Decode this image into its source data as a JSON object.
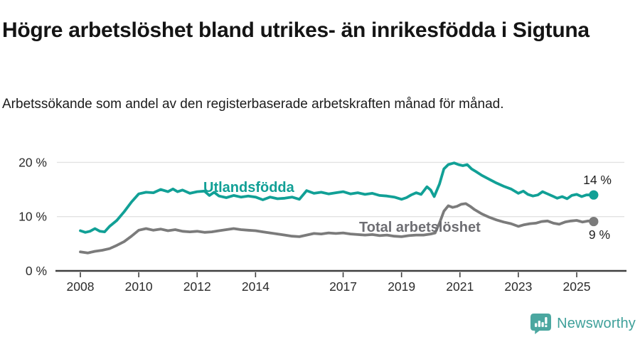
{
  "header": {
    "title": "Högre arbetslöshet bland utrikes- än inrikesfödda i Sigtuna",
    "subtitle": "Arbetssökande som andel av den registerbaserade arbetskraften månad för månad."
  },
  "footer": {
    "brand": "Newsworthy"
  },
  "colors": {
    "accent_teal": "#11a096",
    "series_gray": "#7b7b7b",
    "gray_label": "#6e6e73",
    "axis": "#3f3f3f",
    "grid": "#e2e2e2",
    "tick_text": "#2b2b2b",
    "value_text": "#1f1f1f",
    "brand_teal": "#4ba7a0"
  },
  "chart_data": {
    "type": "line",
    "title": "Högre arbetslöshet bland utrikes- än inrikesfödda i Sigtuna",
    "xlabel": "",
    "ylabel": "",
    "x_unit": "year (monthly data)",
    "y_unit": "%",
    "xlim": [
      2007.2,
      2026.6
    ],
    "ylim": [
      0,
      21
    ],
    "grid": "horizontal",
    "legend_position": "inline-labels",
    "y_ticks": [
      0,
      10,
      20
    ],
    "y_tick_labels": [
      "0 %",
      "10 %",
      "20 %"
    ],
    "x_ticks": [
      2008,
      2010,
      2012,
      2014,
      2017,
      2019,
      2021,
      2023,
      2025
    ],
    "x_tick_labels": [
      "2008",
      "2010",
      "2012",
      "2014",
      "2017",
      "2019",
      "2021",
      "2023",
      "2025"
    ],
    "series": [
      {
        "name": "Utlandsfödda",
        "color": "#11a096",
        "end_label": "14 %",
        "end_value": 14,
        "points": [
          [
            2008.0,
            7.4
          ],
          [
            2008.17,
            7.1
          ],
          [
            2008.33,
            7.3
          ],
          [
            2008.5,
            7.8
          ],
          [
            2008.67,
            7.3
          ],
          [
            2008.83,
            7.2
          ],
          [
            2009.0,
            8.2
          ],
          [
            2009.25,
            9.3
          ],
          [
            2009.5,
            10.9
          ],
          [
            2009.75,
            12.7
          ],
          [
            2010.0,
            14.2
          ],
          [
            2010.25,
            14.5
          ],
          [
            2010.5,
            14.4
          ],
          [
            2010.75,
            15.0
          ],
          [
            2011.0,
            14.6
          ],
          [
            2011.17,
            15.1
          ],
          [
            2011.33,
            14.6
          ],
          [
            2011.5,
            14.9
          ],
          [
            2011.75,
            14.3
          ],
          [
            2012.0,
            14.6
          ],
          [
            2012.25,
            14.7
          ],
          [
            2012.42,
            13.9
          ],
          [
            2012.58,
            14.5
          ],
          [
            2012.75,
            13.8
          ],
          [
            2013.0,
            13.5
          ],
          [
            2013.25,
            13.9
          ],
          [
            2013.5,
            13.6
          ],
          [
            2013.75,
            13.8
          ],
          [
            2014.0,
            13.6
          ],
          [
            2014.25,
            13.1
          ],
          [
            2014.5,
            13.6
          ],
          [
            2014.75,
            13.3
          ],
          [
            2015.0,
            13.4
          ],
          [
            2015.25,
            13.6
          ],
          [
            2015.5,
            13.2
          ],
          [
            2015.75,
            14.8
          ],
          [
            2016.0,
            14.3
          ],
          [
            2016.25,
            14.5
          ],
          [
            2016.5,
            14.2
          ],
          [
            2016.75,
            14.4
          ],
          [
            2017.0,
            14.6
          ],
          [
            2017.25,
            14.2
          ],
          [
            2017.5,
            14.4
          ],
          [
            2017.75,
            14.1
          ],
          [
            2018.0,
            14.3
          ],
          [
            2018.25,
            13.9
          ],
          [
            2018.5,
            13.8
          ],
          [
            2018.75,
            13.6
          ],
          [
            2019.0,
            13.2
          ],
          [
            2019.17,
            13.5
          ],
          [
            2019.33,
            14.0
          ],
          [
            2019.5,
            14.4
          ],
          [
            2019.67,
            14.1
          ],
          [
            2019.87,
            15.5
          ],
          [
            2020.0,
            14.9
          ],
          [
            2020.12,
            13.7
          ],
          [
            2020.3,
            16.0
          ],
          [
            2020.45,
            18.8
          ],
          [
            2020.6,
            19.6
          ],
          [
            2020.8,
            19.9
          ],
          [
            2020.95,
            19.6
          ],
          [
            2021.1,
            19.4
          ],
          [
            2021.25,
            19.6
          ],
          [
            2021.4,
            18.8
          ],
          [
            2021.55,
            18.3
          ],
          [
            2021.75,
            17.6
          ],
          [
            2022.0,
            16.9
          ],
          [
            2022.25,
            16.2
          ],
          [
            2022.5,
            15.6
          ],
          [
            2022.75,
            15.1
          ],
          [
            2023.0,
            14.3
          ],
          [
            2023.17,
            14.7
          ],
          [
            2023.33,
            14.1
          ],
          [
            2023.5,
            13.8
          ],
          [
            2023.67,
            14.0
          ],
          [
            2023.83,
            14.6
          ],
          [
            2024.0,
            14.2
          ],
          [
            2024.17,
            13.8
          ],
          [
            2024.33,
            13.4
          ],
          [
            2024.5,
            13.7
          ],
          [
            2024.67,
            13.3
          ],
          [
            2024.83,
            13.9
          ],
          [
            2025.0,
            14.1
          ],
          [
            2025.17,
            13.7
          ],
          [
            2025.33,
            14.0
          ],
          [
            2025.58,
            14.0
          ]
        ]
      },
      {
        "name": "Total arbetslöshet",
        "color": "#7b7b7b",
        "end_label": "9 %",
        "end_value": 9,
        "points": [
          [
            2008.0,
            3.5
          ],
          [
            2008.25,
            3.3
          ],
          [
            2008.5,
            3.6
          ],
          [
            2008.75,
            3.8
          ],
          [
            2009.0,
            4.1
          ],
          [
            2009.25,
            4.7
          ],
          [
            2009.5,
            5.4
          ],
          [
            2009.75,
            6.4
          ],
          [
            2010.0,
            7.5
          ],
          [
            2010.25,
            7.8
          ],
          [
            2010.5,
            7.5
          ],
          [
            2010.75,
            7.7
          ],
          [
            2011.0,
            7.4
          ],
          [
            2011.25,
            7.6
          ],
          [
            2011.5,
            7.3
          ],
          [
            2011.75,
            7.2
          ],
          [
            2012.0,
            7.3
          ],
          [
            2012.25,
            7.1
          ],
          [
            2012.5,
            7.2
          ],
          [
            2012.75,
            7.4
          ],
          [
            2013.0,
            7.6
          ],
          [
            2013.25,
            7.8
          ],
          [
            2013.5,
            7.6
          ],
          [
            2013.75,
            7.5
          ],
          [
            2014.0,
            7.4
          ],
          [
            2014.25,
            7.2
          ],
          [
            2014.5,
            7.0
          ],
          [
            2014.75,
            6.8
          ],
          [
            2015.0,
            6.6
          ],
          [
            2015.25,
            6.4
          ],
          [
            2015.5,
            6.3
          ],
          [
            2015.75,
            6.6
          ],
          [
            2016.0,
            6.9
          ],
          [
            2016.25,
            6.8
          ],
          [
            2016.5,
            7.0
          ],
          [
            2016.75,
            6.9
          ],
          [
            2017.0,
            7.0
          ],
          [
            2017.25,
            6.8
          ],
          [
            2017.5,
            6.7
          ],
          [
            2017.75,
            6.6
          ],
          [
            2018.0,
            6.7
          ],
          [
            2018.25,
            6.5
          ],
          [
            2018.5,
            6.6
          ],
          [
            2018.75,
            6.4
          ],
          [
            2019.0,
            6.3
          ],
          [
            2019.25,
            6.5
          ],
          [
            2019.5,
            6.6
          ],
          [
            2019.75,
            6.6
          ],
          [
            2020.0,
            6.8
          ],
          [
            2020.15,
            7.0
          ],
          [
            2020.3,
            8.8
          ],
          [
            2020.45,
            11.0
          ],
          [
            2020.6,
            12.0
          ],
          [
            2020.75,
            11.7
          ],
          [
            2020.9,
            11.9
          ],
          [
            2021.05,
            12.3
          ],
          [
            2021.2,
            12.4
          ],
          [
            2021.35,
            11.9
          ],
          [
            2021.5,
            11.3
          ],
          [
            2021.75,
            10.5
          ],
          [
            2022.0,
            9.9
          ],
          [
            2022.25,
            9.4
          ],
          [
            2022.5,
            9.0
          ],
          [
            2022.75,
            8.7
          ],
          [
            2023.0,
            8.2
          ],
          [
            2023.2,
            8.5
          ],
          [
            2023.4,
            8.7
          ],
          [
            2023.6,
            8.8
          ],
          [
            2023.8,
            9.1
          ],
          [
            2024.0,
            9.2
          ],
          [
            2024.2,
            8.8
          ],
          [
            2024.4,
            8.6
          ],
          [
            2024.6,
            9.0
          ],
          [
            2024.8,
            9.2
          ],
          [
            2025.0,
            9.3
          ],
          [
            2025.2,
            9.0
          ],
          [
            2025.4,
            9.2
          ],
          [
            2025.58,
            9.1
          ]
        ]
      }
    ]
  }
}
